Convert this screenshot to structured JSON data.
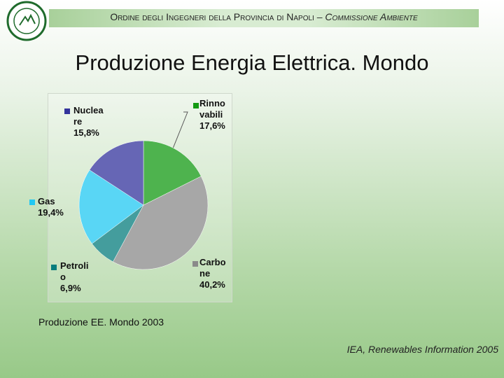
{
  "header": {
    "organization": "Ordine degli Ingegneri della Provincia di Napoli",
    "committee": "– Commissione Ambiente"
  },
  "chart_data": {
    "type": "pie",
    "title": "Produzione Energia Elettrica. Mondo",
    "subtitle": "Produzione EE. Mondo 2003",
    "source": "IEA, Renewables Information 2005",
    "categories": [
      "Rinnovabili",
      "Carbone",
      "Petrolio",
      "Gas",
      "Nucleare"
    ],
    "values": [
      17.6,
      40.2,
      6.9,
      19.4,
      15.8
    ],
    "value_labels": [
      "17,6%",
      "40,2%",
      "6,9%",
      "19,4%",
      "15,8%"
    ],
    "colors": [
      "#139a13",
      "#8a8a8a",
      "#067d7d",
      "#22c8f2",
      "#33339c"
    ]
  }
}
